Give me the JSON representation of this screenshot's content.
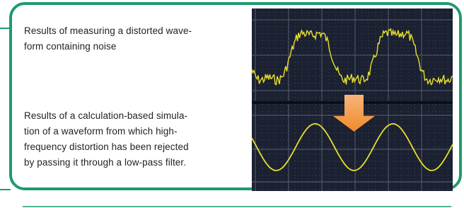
{
  "paragraphs": [
    {
      "lines": [
        "Results of measuring a distorted wave-",
        "form containing noise"
      ]
    },
    {
      "lines": [
        "Results of a calculation-based simula-",
        "tion of a waveform from which high-",
        "frequency distortion has been rejected",
        "by passing it through a low-pass filter."
      ]
    }
  ]
}
